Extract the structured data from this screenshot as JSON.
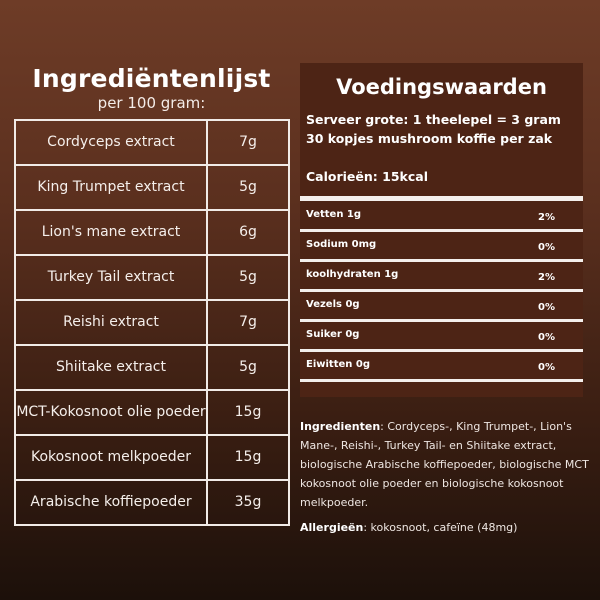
{
  "ingredients_list": {
    "title": "Ingrediëntenlijst",
    "subtitle": "per 100 gram:",
    "rows": [
      {
        "name": "Cordyceps extract",
        "amount": "7g"
      },
      {
        "name": "King Trumpet extract",
        "amount": "5g"
      },
      {
        "name": "Lion's mane extract",
        "amount": "6g"
      },
      {
        "name": "Turkey Tail extract",
        "amount": "5g"
      },
      {
        "name": "Reishi extract",
        "amount": "7g"
      },
      {
        "name": "Shiitake extract",
        "amount": "5g"
      },
      {
        "name": "MCT-Kokosnoot olie poeder",
        "amount": "15g"
      },
      {
        "name": "Kokosnoot melkpoeder",
        "amount": "15g"
      },
      {
        "name": "Arabische koffiepoeder",
        "amount": "35g"
      }
    ]
  },
  "nutrition": {
    "title": "Voedingswaarden",
    "serving_line1": "Serveer grote:  1 theelepel = 3 gram",
    "serving_line2": "30 kopjes mushroom koffie per zak",
    "calories": "Calorieën: 15kcal",
    "rows": [
      {
        "name": "Vetten 1g",
        "percent": "2%"
      },
      {
        "name": "Sodium 0mg",
        "percent": "0%"
      },
      {
        "name": "koolhydraten 1g",
        "percent": "2%"
      },
      {
        "name": "Vezels 0g",
        "percent": "0%"
      },
      {
        "name": "Suiker 0g",
        "percent": "0%"
      },
      {
        "name": "Eiwitten 0g",
        "percent": "0%"
      }
    ]
  },
  "ingredients_text": {
    "label": "Ingredienten",
    "text": ": Cordyceps-, King Trumpet-, Lion's Mane-, Reishi-, Turkey Tail- en Shiitake extract, biologische Arabische koffiepoeder, biologische MCT kokosnoot olie poeder en biologische kokosnoot melkpoeder."
  },
  "allergens": {
    "label": "Allergieën",
    "text": ": kokosnoot, cafeïne (48mg)"
  },
  "colors": {
    "panel": "#4d2415",
    "background_top": "#6e3c27",
    "background_bottom": "#1c100a"
  }
}
